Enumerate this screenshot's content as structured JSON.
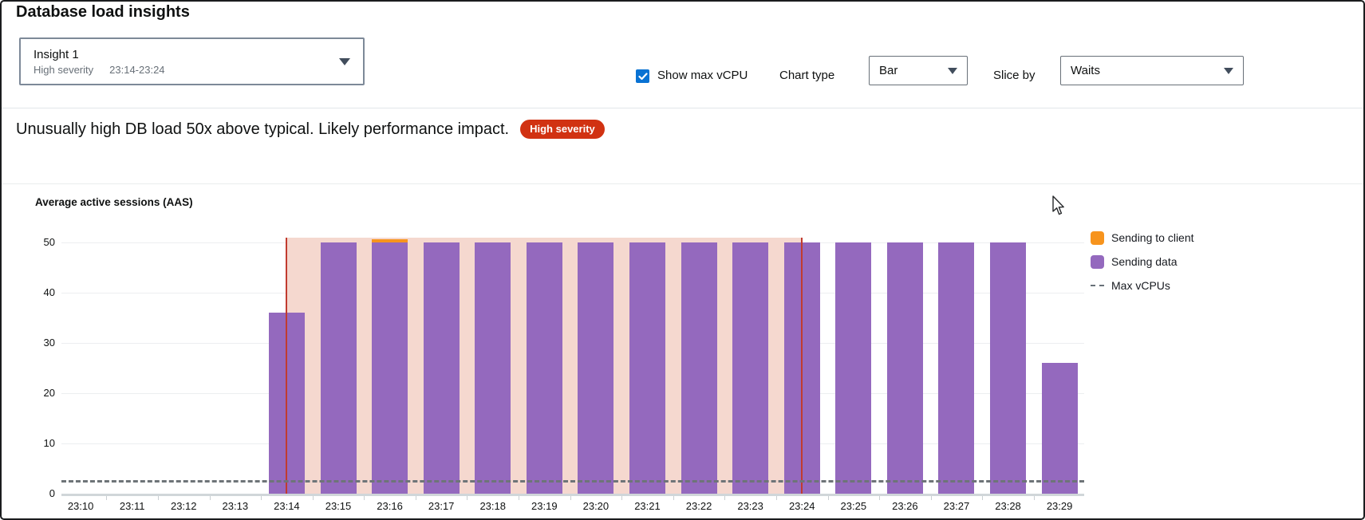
{
  "page_title": "Database load insights",
  "insight_selector": {
    "name": "Insight 1",
    "severity": "High severity",
    "time_range": "23:14-23:24"
  },
  "controls": {
    "show_max_vcpu_label": "Show max vCPU",
    "show_max_vcpu_checked": true,
    "chart_type_label": "Chart type",
    "chart_type_value": "Bar",
    "slice_by_label": "Slice by",
    "slice_by_value": "Waits"
  },
  "insight_message": {
    "text": "Unusually high DB load 50x above typical. Likely performance impact.",
    "badge": "High severity"
  },
  "chart_data": {
    "type": "bar",
    "stacked": true,
    "title": "Average active sessions (AAS)",
    "x": [
      "23:10",
      "23:11",
      "23:12",
      "23:13",
      "23:14",
      "23:15",
      "23:16",
      "23:17",
      "23:18",
      "23:19",
      "23:20",
      "23:21",
      "23:22",
      "23:23",
      "23:24",
      "23:25",
      "23:26",
      "23:27",
      "23:28",
      "23:29"
    ],
    "series": [
      {
        "name": "Sending data",
        "color": "#9469be",
        "values": [
          0,
          0,
          0,
          0,
          36,
          50,
          50,
          50,
          50,
          50,
          50,
          50,
          50,
          50,
          50,
          50,
          50,
          50,
          50,
          26
        ]
      },
      {
        "name": "Sending to client",
        "color": "#f7941d",
        "values": [
          0,
          0,
          0,
          0,
          0,
          0,
          0.7,
          0,
          0,
          0,
          0,
          0,
          0,
          0,
          0,
          0,
          0,
          0,
          0,
          0
        ]
      }
    ],
    "yticks": [
      0,
      10,
      20,
      30,
      40,
      50
    ],
    "ylim": [
      0,
      50
    ],
    "max_vcpus": {
      "label": "Max vCPUs",
      "value": 2.5,
      "color": "#6e7478"
    },
    "highlight": {
      "from": "23:14",
      "to": "23:24",
      "fill": "#f5d8cf",
      "edge_color": "#c13b2f"
    },
    "legend_position": "right",
    "grid": true
  },
  "colors": {
    "accent_blue": "#0972d3",
    "badge_red": "#d13212",
    "bar_purple": "#9469be",
    "bar_orange": "#f7941d",
    "highlight_pink": "#f5d8cf",
    "boundary_red": "#c13b2f"
  }
}
